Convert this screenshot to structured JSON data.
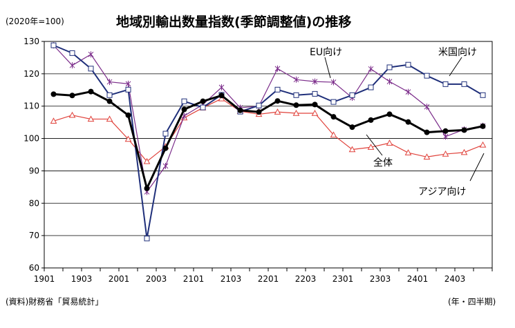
{
  "chart_data": {
    "type": "line",
    "title": "地域別輸出数量指数(季節調整値)の推移",
    "unit_note": "(2020年=100)",
    "source_note": "(資料)財務省「貿易統計」",
    "period_note": "(年・四半期)",
    "ylim": [
      60,
      130
    ],
    "y_ticks": [
      "60",
      "70",
      "80",
      "90",
      "100",
      "110",
      "120",
      "130"
    ],
    "x": [
      "1901",
      "1902",
      "1903",
      "1904",
      "2001",
      "2002",
      "2003",
      "2004",
      "2101",
      "2102",
      "2103",
      "2104",
      "2201",
      "2202",
      "2203",
      "2204",
      "2301",
      "2302",
      "2303",
      "2304",
      "2401",
      "2402",
      "2403",
      "2404"
    ],
    "x_tick_labels": [
      "1901",
      "1903",
      "2001",
      "2003",
      "2101",
      "2103",
      "2201",
      "2203",
      "2301",
      "2303",
      "2401",
      "2403"
    ],
    "grid": true,
    "series": [
      {
        "name": "全体",
        "color": "#000000",
        "marker": "filled-circle",
        "values": [
          113.7,
          113.3,
          114.5,
          111.5,
          107.2,
          84.6,
          97.0,
          109.0,
          111.5,
          113.3,
          108.7,
          108.2,
          111.6,
          110.3,
          110.5,
          106.7,
          103.5,
          105.7,
          107.5,
          105.1,
          101.9,
          102.3,
          102.6,
          103.8
        ]
      },
      {
        "name": "EU向け",
        "color": "#7b2c8a",
        "marker": "star",
        "values": [
          128.8,
          122.6,
          126.0,
          117.5,
          116.9,
          83.5,
          91.5,
          107.0,
          110.5,
          115.8,
          109.5,
          110.0,
          121.6,
          118.2,
          117.6,
          117.4,
          112.6,
          121.5,
          117.6,
          114.4,
          109.8,
          100.6,
          102.8,
          103.9
        ]
      },
      {
        "name": "米国向け",
        "color": "#1f2f7a",
        "marker": "open-square",
        "values": [
          128.8,
          126.4,
          121.6,
          113.4,
          115.1,
          69.1,
          101.5,
          111.5,
          109.6,
          113.5,
          108.3,
          110.2,
          115.1,
          113.4,
          113.8,
          111.3,
          113.4,
          115.8,
          122.0,
          122.8,
          119.4,
          116.8,
          116.8,
          113.4
        ]
      },
      {
        "name": "アジア向け",
        "color": "#e0413a",
        "marker": "open-triangle",
        "values": [
          105.4,
          107.2,
          106.0,
          106.0,
          99.8,
          92.9,
          97.5,
          106.4,
          109.5,
          112.3,
          108.4,
          107.5,
          108.2,
          107.8,
          107.8,
          101.1,
          96.6,
          97.3,
          98.6,
          95.6,
          94.3,
          95.2,
          95.7,
          98.0
        ]
      }
    ]
  }
}
